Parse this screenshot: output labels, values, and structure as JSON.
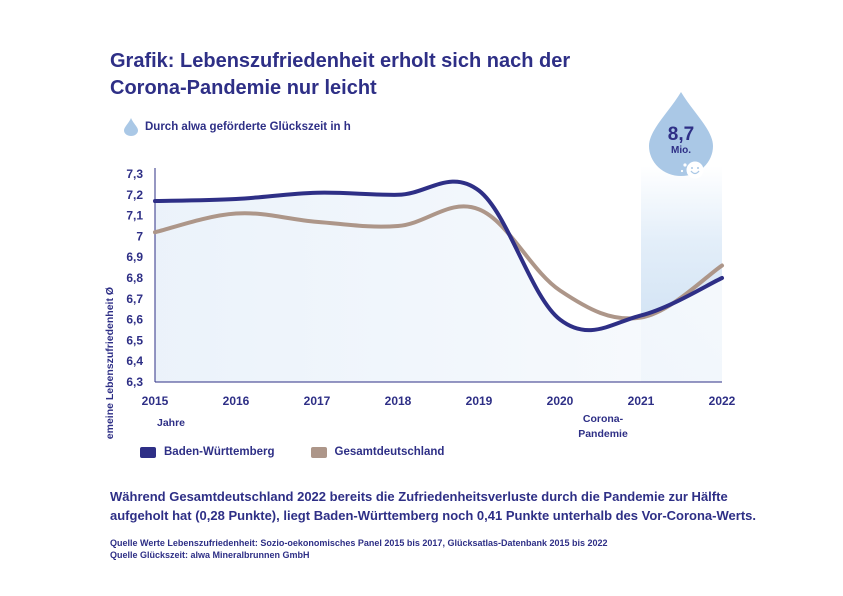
{
  "header": {
    "title_line1": "Grafik: Lebenszufriedenheit erholt sich nach der",
    "title_line2": "Corona-Pandemie nur leicht"
  },
  "drop_legend": {
    "label": "Durch alwa geförderte Glückszeit in h",
    "icon": "water-drop-icon"
  },
  "badge": {
    "value": "8,7",
    "unit": "Mio.",
    "icon": "smiling-drop-icon",
    "year": "2021"
  },
  "chart_data": {
    "type": "line",
    "x": [
      "2015",
      "2016",
      "2017",
      "2018",
      "2019",
      "2020",
      "2021",
      "2022"
    ],
    "ylabel": "Allgemeine Lebenszufriedenheit Ø",
    "xlabel": "Jahre",
    "ylim": [
      6.3,
      7.3
    ],
    "yticks": [
      "7,3",
      "7,2",
      "7,1",
      "7",
      "6,9",
      "6,8",
      "6,7",
      "6,6",
      "6,5",
      "6,4",
      "6,3"
    ],
    "annotations": [
      {
        "x": "2020",
        "text_line1": "Corona-",
        "text_line2": "Pandemie"
      }
    ],
    "series": [
      {
        "name": "Baden-Württemberg",
        "color": "#2e2f86",
        "values": [
          7.17,
          7.18,
          7.21,
          7.2,
          7.22,
          6.6,
          6.62,
          6.8
        ]
      },
      {
        "name": "Gesamtdeutschland",
        "color": "#ad9689",
        "values": [
          7.02,
          7.11,
          7.07,
          7.05,
          7.13,
          6.74,
          6.61,
          6.86
        ]
      }
    ]
  },
  "summary": "Während Gesamtdeutschland 2022 bereits die Zufriedenheitsverluste durch die Pandemie zur Hälfte aufgeholt hat (0,28 Punkte), liegt Baden-Württemberg noch 0,41 Punkte unterhalb des Vor-Corona-Werts.",
  "sources": {
    "line1": "Quelle Werte Lebenszufriedenheit: Sozio-oekonomisches Panel 2015 bis 2017, Glücksatlas-Datenbank 2015 bis 2022",
    "line2": "Quelle Glückszeit: alwa Mineralbrunnen GmbH"
  },
  "colors": {
    "navy": "#2e2f86",
    "taupe": "#ad9689",
    "highlight": "#cfe1f3",
    "drop": "#aac8e6"
  }
}
